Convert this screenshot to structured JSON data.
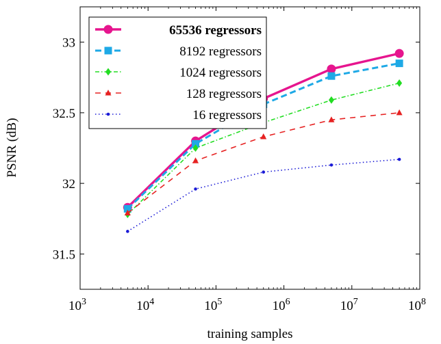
{
  "chart_data": {
    "type": "line",
    "xscale": "log",
    "xlabel": "training samples",
    "ylabel": "PSNR (dB)",
    "xlim": [
      1000,
      100000000
    ],
    "ylim": [
      31.25,
      33.25
    ],
    "x_ticks": [
      {
        "value": 1000,
        "base": "10",
        "exp": "3"
      },
      {
        "value": 10000,
        "base": "10",
        "exp": "4"
      },
      {
        "value": 100000,
        "base": "10",
        "exp": "5"
      },
      {
        "value": 1000000,
        "base": "10",
        "exp": "6"
      },
      {
        "value": 10000000,
        "base": "10",
        "exp": "7"
      },
      {
        "value": 100000000,
        "base": "10",
        "exp": "8"
      }
    ],
    "y_ticks": [
      {
        "value": 31.5,
        "label": "31.5"
      },
      {
        "value": 32,
        "label": "32"
      },
      {
        "value": 32.5,
        "label": "32.5"
      },
      {
        "value": 33,
        "label": "33"
      }
    ],
    "legend_position": "top-left",
    "grid": false,
    "x": [
      5000,
      50000,
      500000,
      5000000,
      50000000
    ],
    "series": [
      {
        "name": "65536 regressors",
        "values": [
          31.83,
          32.3,
          32.6,
          32.81,
          32.92
        ],
        "color": "#e6158e",
        "dash": "solid",
        "marker": "circle",
        "bold": true
      },
      {
        "name": "8192 regressors",
        "values": [
          31.82,
          32.28,
          32.56,
          32.76,
          32.85
        ],
        "color": "#1ea9e6",
        "dash": "dashed",
        "marker": "square",
        "bold": false
      },
      {
        "name": "1024 regressors",
        "values": [
          31.78,
          32.25,
          32.43,
          32.59,
          32.71
        ],
        "color": "#22dd22",
        "dash": "dashdot",
        "marker": "diamond",
        "bold": false
      },
      {
        "name": "128 regressors",
        "values": [
          31.79,
          32.16,
          32.33,
          32.45,
          32.5
        ],
        "color": "#e62222",
        "dash": "loosedash",
        "marker": "triangle",
        "bold": false
      },
      {
        "name": "16 regressors",
        "values": [
          31.66,
          31.96,
          32.08,
          32.13,
          32.17
        ],
        "color": "#1a1ad6",
        "dash": "dotted",
        "marker": "dot",
        "bold": false
      }
    ]
  }
}
